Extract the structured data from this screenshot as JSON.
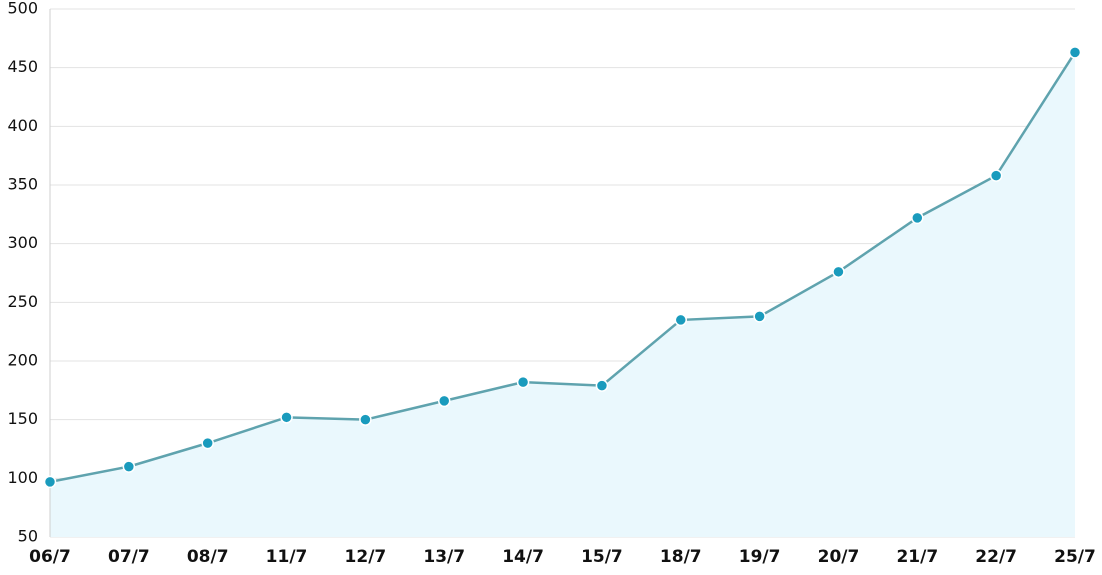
{
  "chart_data": {
    "type": "area",
    "categories": [
      "06/7",
      "07/7",
      "08/7",
      "11/7",
      "12/7",
      "13/7",
      "14/7",
      "15/7",
      "18/7",
      "19/7",
      "20/7",
      "21/7",
      "22/7",
      "25/7"
    ],
    "values": [
      97,
      110,
      130,
      152,
      150,
      166,
      182,
      179,
      235,
      238,
      276,
      322,
      358,
      463
    ],
    "color": "#5fa3ae",
    "marker_color": "#1a9bbd",
    "fill_color": "#eaf8fd",
    "ylim": [
      50,
      500
    ],
    "yticks": [
      50,
      100,
      150,
      200,
      250,
      300,
      350,
      400,
      450,
      500
    ],
    "grid": true
  }
}
